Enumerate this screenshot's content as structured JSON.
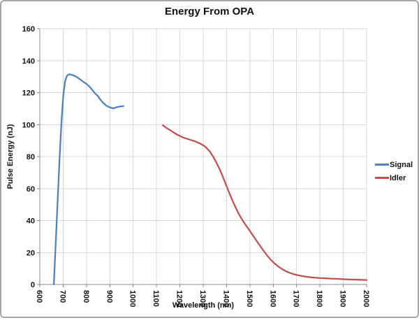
{
  "colors": {
    "signal": "#4F81BD",
    "idler": "#C0504D",
    "grid": "#D9D9D9",
    "axis": "#898989",
    "frame_border": "#A6A6A6",
    "text": "#111111"
  },
  "chart_data": {
    "type": "line",
    "title": "Energy From OPA",
    "xlabel": "Wavelength (nm)",
    "ylabel": "Pulse Energy (nJ)",
    "xlim": [
      600,
      2000
    ],
    "ylim": [
      0,
      160
    ],
    "x_ticks": [
      600,
      700,
      800,
      900,
      1000,
      1100,
      1200,
      1300,
      1400,
      1500,
      1600,
      1700,
      1800,
      1900,
      2000
    ],
    "y_ticks": [
      0,
      20,
      40,
      60,
      80,
      100,
      120,
      140,
      160
    ],
    "grid": true,
    "legend_position": "right-outside",
    "x_tick_label_rotation_deg": 90,
    "series": [
      {
        "name": "Signal",
        "color": "#4F81BD",
        "points": [
          [
            660,
            0
          ],
          [
            668,
            25
          ],
          [
            676,
            51
          ],
          [
            684,
            77
          ],
          [
            692,
            100
          ],
          [
            700,
            117
          ],
          [
            708,
            127
          ],
          [
            716,
            130.5
          ],
          [
            724,
            131.4
          ],
          [
            732,
            131.3
          ],
          [
            740,
            131
          ],
          [
            750,
            130.4
          ],
          [
            764,
            129.2
          ],
          [
            776,
            127.9
          ],
          [
            788,
            126.6
          ],
          [
            800,
            125.4
          ],
          [
            812,
            123.8
          ],
          [
            824,
            121.8
          ],
          [
            836,
            119.6
          ],
          [
            848,
            118
          ],
          [
            860,
            115.5
          ],
          [
            872,
            113.5
          ],
          [
            884,
            112
          ],
          [
            896,
            111
          ],
          [
            908,
            110.4
          ],
          [
            916,
            110.2
          ],
          [
            930,
            110.9
          ],
          [
            945,
            111.3
          ],
          [
            958,
            111.5
          ]
        ]
      },
      {
        "name": "Idler",
        "color": "#C0504D",
        "points": [
          [
            1127,
            99.6
          ],
          [
            1140,
            98.2
          ],
          [
            1155,
            96.8
          ],
          [
            1170,
            95.4
          ],
          [
            1185,
            94
          ],
          [
            1200,
            92.9
          ],
          [
            1213,
            92
          ],
          [
            1224,
            91.4
          ],
          [
            1236,
            90.9
          ],
          [
            1248,
            90.3
          ],
          [
            1260,
            89.8
          ],
          [
            1272,
            89.1
          ],
          [
            1284,
            88.3
          ],
          [
            1296,
            87.4
          ],
          [
            1308,
            86.2
          ],
          [
            1320,
            84.5
          ],
          [
            1332,
            82.3
          ],
          [
            1344,
            79.6
          ],
          [
            1356,
            76.4
          ],
          [
            1370,
            72.2
          ],
          [
            1384,
            67.4
          ],
          [
            1398,
            62.2
          ],
          [
            1414,
            56.4
          ],
          [
            1430,
            50.9
          ],
          [
            1446,
            45.9
          ],
          [
            1462,
            41.6
          ],
          [
            1478,
            38
          ],
          [
            1494,
            34.7
          ],
          [
            1510,
            31.3
          ],
          [
            1526,
            27.9
          ],
          [
            1542,
            24.5
          ],
          [
            1558,
            21.2
          ],
          [
            1574,
            18.1
          ],
          [
            1590,
            15.4
          ],
          [
            1606,
            13.1
          ],
          [
            1622,
            11.2
          ],
          [
            1638,
            9.6
          ],
          [
            1654,
            8.3
          ],
          [
            1670,
            7.3
          ],
          [
            1686,
            6.5
          ],
          [
            1702,
            5.9
          ],
          [
            1722,
            5.3
          ],
          [
            1742,
            4.8
          ],
          [
            1762,
            4.5
          ],
          [
            1782,
            4.2
          ],
          [
            1802,
            4
          ],
          [
            1827,
            3.8
          ],
          [
            1852,
            3.6
          ],
          [
            1877,
            3.5
          ],
          [
            1902,
            3.3
          ],
          [
            1927,
            3.1
          ],
          [
            1952,
            3
          ],
          [
            1976,
            2.9
          ],
          [
            2000,
            2.8
          ]
        ]
      }
    ]
  }
}
